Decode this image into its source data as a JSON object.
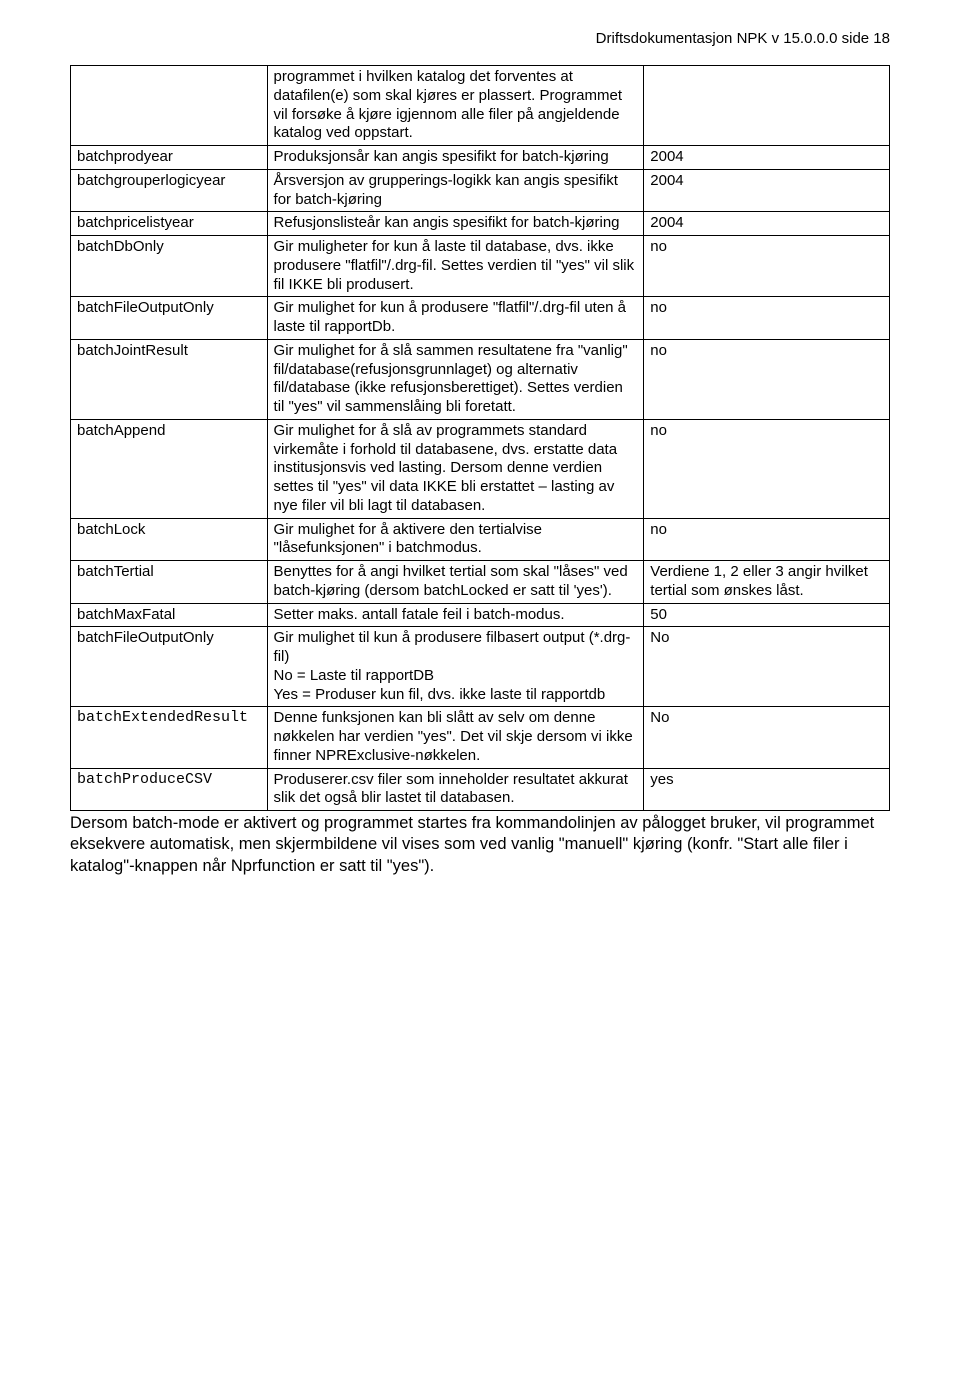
{
  "header": "Driftsdokumentasjon NPK v 15.0.0.0 side 18",
  "rows": [
    {
      "param": "",
      "desc": "programmet i hvilken katalog det forventes at datafilen(e) som skal kjøres er plassert. Programmet vil forsøke å kjøre igjennom alle filer på angjeldende katalog ved oppstart.",
      "value": "",
      "monospace": false
    },
    {
      "param": "batchprodyear",
      "desc": "Produksjonsår kan angis spesifikt for batch-kjøring",
      "value": "2004",
      "monospace": false
    },
    {
      "param": "batchgrouperlogicyear",
      "desc": "Årsversjon av grupperings-logikk kan angis spesifikt for batch-kjøring",
      "value": "2004",
      "monospace": false
    },
    {
      "param": "batchpricelistyear",
      "desc": "Refusjonslisteår kan angis spesifikt for batch-kjøring",
      "value": "2004",
      "monospace": false
    },
    {
      "param": "batchDbOnly",
      "desc": "Gir muligheter for kun å laste til database, dvs. ikke produsere \"flatfil\"/.drg-fil. Settes verdien til \"yes\" vil slik fil IKKE bli produsert.",
      "value": "no",
      "monospace": false
    },
    {
      "param": "batchFileOutputOnly",
      "desc": "Gir mulighet for kun å produsere \"flatfil\"/.drg-fil uten å laste til rapportDb.",
      "value": "no",
      "monospace": false
    },
    {
      "param": "batchJointResult",
      "desc": "Gir mulighet for å slå sammen resultatene fra \"vanlig\" fil/database(refusjonsgrunnlaget) og alternativ fil/database (ikke refusjonsberettiget). Settes verdien til \"yes\" vil sammenslåing bli foretatt.",
      "value": "no",
      "monospace": false
    },
    {
      "param": "batchAppend",
      "desc": "Gir mulighet for å slå av programmets standard virkemåte i forhold til databasene, dvs. erstatte data institusjonsvis ved lasting. Dersom denne verdien settes til \"yes\" vil data IKKE bli erstattet – lasting av nye filer vil bli lagt til databasen.",
      "value": "no",
      "monospace": false
    },
    {
      "param": "batchLock",
      "desc": "Gir mulighet for å aktivere den tertialvise \"låsefunksjonen\" i batchmodus.",
      "value": "no",
      "monospace": false
    },
    {
      "param": "batchTertial",
      "desc": "Benyttes for å angi hvilket tertial som skal \"låses\" ved batch-kjøring (dersom batchLocked er satt til 'yes').",
      "value": "Verdiene 1, 2 eller 3 angir hvilket tertial som ønskes låst.",
      "monospace": false
    },
    {
      "param": "batchMaxFatal",
      "desc": "Setter maks. antall fatale feil i batch-modus.",
      "value": "50",
      "monospace": false
    },
    {
      "param": "batchFileOutputOnly",
      "desc": "Gir mulighet til kun å produsere filbasert output (*.drg-fil)\nNo = Laste til rapportDB\nYes = Produser kun fil, dvs. ikke laste til rapportdb",
      "value": "No",
      "monospace": false
    },
    {
      "param": "batchExtendedResult",
      "desc": "Denne funksjonen kan bli slått av selv om denne nøkkelen har verdien \"yes\". Det vil skje dersom vi ikke finner NPRExclusive-nøkkelen.",
      "value": "No",
      "monospace": true
    },
    {
      "param": "batchProduceCSV",
      "desc": "Produserer.csv filer som inneholder resultatet akkurat slik det også blir lastet til databasen.",
      "value": "yes",
      "monospace": true
    }
  ],
  "footer": "Dersom batch-mode er aktivert og programmet startes fra kommandolinjen av pålogget bruker, vil programmet eksekvere automatisk, men skjermbildene vil vises som ved vanlig \"manuell\" kjøring (konfr. \"Start alle filer i katalog\"-knappen når Nprfunction er satt til \"yes\")."
}
